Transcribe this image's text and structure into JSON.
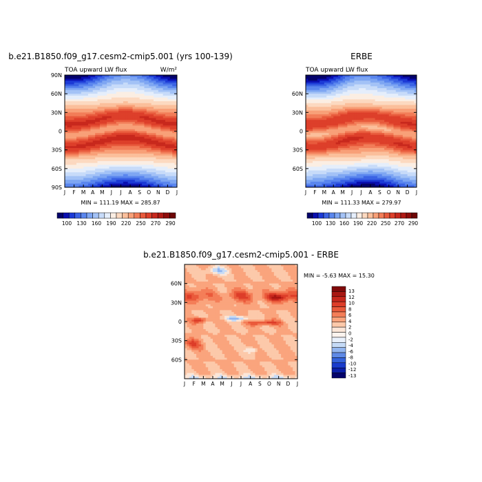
{
  "chart_data": [
    {
      "type": "heatmap",
      "title": "b.e21.B1850.f09_g17.cesm2-cmip5.001 (yrs 100-139)",
      "subtitle_left": "TOA upward LW flux",
      "subtitle_right": "W/m²",
      "x_tick_labels": [
        "J",
        "F",
        "M",
        "A",
        "M",
        "J",
        "J",
        "A",
        "S",
        "O",
        "N",
        "D",
        "J"
      ],
      "y_tick_labels": [
        "90N",
        "60N",
        "30N",
        "0",
        "30S",
        "60S",
        "90S"
      ],
      "ylim": [
        -90,
        90
      ],
      "stats": "MIN = 111.19 MAX = 285.87",
      "min": 111.19,
      "max": 285.87,
      "colorbar_levels": [
        100,
        110,
        120,
        130,
        140,
        150,
        160,
        170,
        180,
        190,
        200,
        210,
        220,
        230,
        240,
        250,
        260,
        270,
        280,
        290
      ],
      "colorbar_labels": [
        "100",
        "130",
        "160",
        "190",
        "220",
        "250",
        "270",
        "290"
      ]
    },
    {
      "type": "heatmap",
      "title": "ERBE",
      "subtitle_left": "TOA upward LW flux",
      "subtitle_right": "",
      "x_tick_labels": [
        "J",
        "F",
        "M",
        "A",
        "M",
        "J",
        "J",
        "A",
        "S",
        "O",
        "N",
        "D",
        "J"
      ],
      "y_tick_labels": [
        "60N",
        "30N",
        "0",
        "30S",
        "60S"
      ],
      "ylim": [
        -90,
        90
      ],
      "stats": "MIN = 111.33 MAX = 279.97",
      "min": 111.33,
      "max": 279.97,
      "colorbar_levels": [
        100,
        110,
        120,
        130,
        140,
        150,
        160,
        170,
        180,
        190,
        200,
        210,
        220,
        230,
        240,
        250,
        260,
        270,
        280,
        290
      ],
      "colorbar_labels": [
        "100",
        "130",
        "160",
        "190",
        "220",
        "250",
        "270",
        "290"
      ]
    },
    {
      "type": "heatmap",
      "title": "b.e21.B1850.f09_g17.cesm2-cmip5.001 - ERBE",
      "x_tick_labels": [
        "J",
        "F",
        "M",
        "A",
        "M",
        "J",
        "J",
        "A",
        "S",
        "O",
        "N",
        "D",
        "J"
      ],
      "y_tick_labels": [
        "60N",
        "30N",
        "0",
        "30S",
        "60S"
      ],
      "ylim": [
        -90,
        90
      ],
      "stats": "MIN =  -5.63 MAX =  15.30",
      "min": -5.63,
      "max": 15.3,
      "colorbar_labels": [
        "13",
        "12",
        "10",
        "8",
        "6",
        "4",
        "2",
        "0",
        "-2",
        "-4",
        "-6",
        "-8",
        "-10",
        "-12",
        "-13"
      ]
    }
  ],
  "colors": {
    "flux_scale": [
      "#04036b",
      "#0a0fb0",
      "#1c3ad6",
      "#3b63e4",
      "#5a86ee",
      "#7ea6f2",
      "#a3c2f6",
      "#c7dbf9",
      "#e5eefb",
      "#fbeee3",
      "#fcd9c0",
      "#fbbf9b",
      "#f8a078",
      "#f27d58",
      "#e85a3c",
      "#dd3f2a",
      "#c8281d",
      "#b01a14",
      "#8e0d0b",
      "#6e0606"
    ],
    "diff_pos": [
      "#fbe6d8",
      "#fcc9aa",
      "#faa47d",
      "#f47e58",
      "#ea5a3b",
      "#dd3d29",
      "#c7271c",
      "#a91712",
      "#800a0a"
    ],
    "diff_neg": [
      "#c6dbf7",
      "#93b6f0",
      "#5f8ae6",
      "#3563dc",
      "#1a3ccc",
      "#0b1fa8",
      "#04036b"
    ]
  }
}
